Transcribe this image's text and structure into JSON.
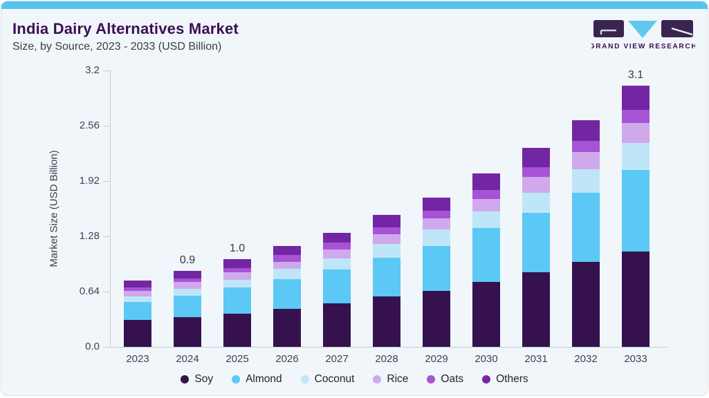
{
  "header": {
    "title": "India Dairy Alternatives Market",
    "subtitle": "Size, by Source, 2023 - 2033 (USD Billion)"
  },
  "logo": {
    "text": "GRAND VIEW RESEARCH",
    "mark_color": "#3a2450",
    "triangle_color": "#5ec9ec",
    "text_color": "#3b1053"
  },
  "chart_data": {
    "type": "bar",
    "stacked": true,
    "title": "India Dairy Alternatives Market Size, by Source, 2023 - 2033 (USD Billion)",
    "xlabel": "",
    "ylabel": "Market Size (USD Billion)",
    "categories": [
      "2023",
      "2024",
      "2025",
      "2026",
      "2027",
      "2028",
      "2029",
      "2030",
      "2031",
      "2032",
      "2033"
    ],
    "series": [
      {
        "name": "Soy",
        "color": "#35124d",
        "values": [
          0.31,
          0.34,
          0.38,
          0.44,
          0.5,
          0.58,
          0.65,
          0.75,
          0.86,
          0.98,
          1.1
        ]
      },
      {
        "name": "Almond",
        "color": "#5bc8f5",
        "values": [
          0.21,
          0.25,
          0.3,
          0.34,
          0.39,
          0.45,
          0.52,
          0.62,
          0.69,
          0.8,
          0.94
        ]
      },
      {
        "name": "Coconut",
        "color": "#bfe6f8",
        "values": [
          0.06,
          0.08,
          0.09,
          0.12,
          0.13,
          0.16,
          0.19,
          0.19,
          0.23,
          0.27,
          0.31
        ]
      },
      {
        "name": "Rice",
        "color": "#d0a9ec",
        "values": [
          0.06,
          0.08,
          0.09,
          0.08,
          0.1,
          0.11,
          0.13,
          0.14,
          0.18,
          0.2,
          0.23
        ]
      },
      {
        "name": "Oats",
        "color": "#a653d6",
        "values": [
          0.04,
          0.04,
          0.05,
          0.08,
          0.08,
          0.08,
          0.09,
          0.1,
          0.11,
          0.13,
          0.15
        ]
      },
      {
        "name": "Others",
        "color": "#7326a3",
        "values": [
          0.08,
          0.09,
          0.1,
          0.1,
          0.11,
          0.14,
          0.15,
          0.19,
          0.22,
          0.24,
          0.28
        ]
      }
    ],
    "bar_total_labels": {
      "2024": "0.9",
      "2025": "1.0",
      "2033": "3.1"
    },
    "ylim": [
      0,
      3.2
    ],
    "yticks": [
      0,
      0.64,
      1.28,
      1.92,
      2.56,
      3.2
    ],
    "ytick_labels": [
      "0.0",
      "0.64",
      "1.28",
      "1.92",
      "2.56",
      "3.2"
    ],
    "grid": false,
    "legend_position": "bottom"
  },
  "style": {
    "card_bg": "#f0f6f9",
    "top_bar": "#56c3f0",
    "border": "#d9e0e6",
    "axis": "#c4ccd3",
    "title_color": "#3b0f55"
  }
}
